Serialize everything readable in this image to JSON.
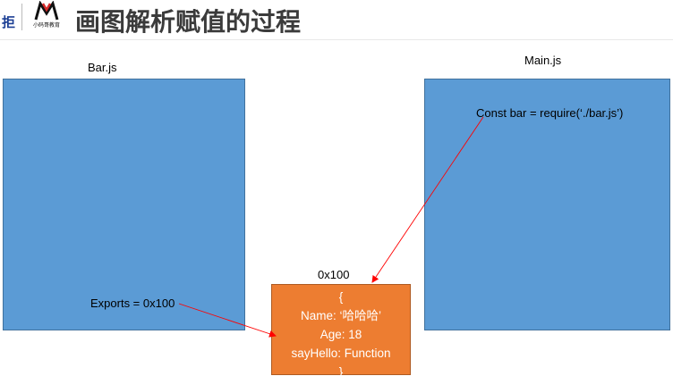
{
  "header": {
    "logo_left_text": "拒",
    "logo_right_text": "小码哥教育",
    "title": "画图解析赋值的过程"
  },
  "bar_module": {
    "title": "Bar.js",
    "statement": "Exports = 0x100"
  },
  "main_module": {
    "title": "Main.js",
    "statement": "Const bar = require(‘./bar.js’)"
  },
  "memory_object": {
    "address": "0x100",
    "lines": [
      "{",
      "Name: ‘哈哈哈’",
      "Age: 18",
      "sayHello: Function",
      "}"
    ]
  },
  "colors": {
    "module_fill": "#5b9bd5",
    "object_fill": "#ed7d31",
    "arrow": "#ff0000"
  }
}
